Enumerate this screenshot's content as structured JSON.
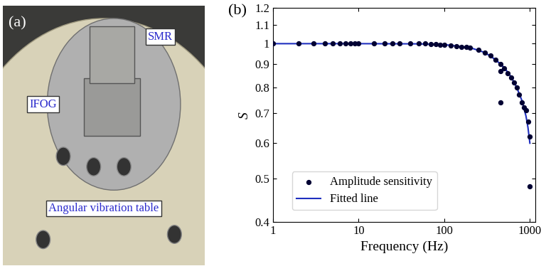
{
  "photo": {
    "label": "(a)",
    "labels": [
      "SMR",
      "IFOG",
      "Angular vibration table"
    ]
  },
  "chart_data": {
    "type": "scatter",
    "annotations": [
      "(b)"
    ],
    "x_label": "Frequency (Hz)",
    "y_label": "S",
    "log": true,
    "legend": "lower left",
    "xlim": [
      1,
      1150
    ],
    "xticks": [
      1,
      10,
      100,
      1000
    ],
    "ylim": [
      0.4,
      1.2
    ],
    "yticks": [
      0.4,
      0.5,
      0.6,
      0.7,
      0.8,
      0.9,
      1,
      1.1,
      1.2
    ],
    "series": [
      {
        "name": "Amplitude sensitivity",
        "type": "scatter",
        "color": "#000033",
        "marker": "o",
        "x": [
          1,
          2,
          3,
          4,
          5,
          6,
          7,
          8,
          9,
          10,
          15,
          20,
          25,
          30,
          40,
          50,
          60,
          70,
          80,
          90,
          100,
          120,
          140,
          160,
          180,
          200,
          250,
          300,
          350,
          400,
          450,
          450,
          450,
          500,
          550,
          600,
          650,
          700,
          750,
          800,
          850,
          900,
          950,
          1000,
          1000
        ],
        "values": [
          1,
          1,
          1,
          1,
          1,
          1,
          1,
          1,
          1,
          1,
          1,
          1,
          1,
          1,
          1,
          1,
          1,
          0.998,
          0.997,
          0.995,
          0.993,
          0.99,
          0.988,
          0.985,
          0.982,
          0.978,
          0.97,
          0.955,
          0.94,
          0.92,
          0.9,
          0.87,
          0.74,
          0.88,
          0.86,
          0.84,
          0.82,
          0.8,
          0.77,
          0.74,
          0.72,
          0.71,
          0.67,
          0.62,
          0.48
        ]
      },
      {
        "name": "Fitted line",
        "type": "line",
        "color": "#1f2fbf",
        "line_style": "solid",
        "x": [
          1,
          10,
          50,
          100,
          200,
          300,
          400,
          500,
          600,
          700,
          800,
          900,
          950,
          1000
        ],
        "values": [
          1,
          1,
          0.999,
          0.995,
          0.98,
          0.955,
          0.92,
          0.885,
          0.845,
          0.8,
          0.75,
          0.69,
          0.65,
          0.6
        ]
      }
    ]
  }
}
